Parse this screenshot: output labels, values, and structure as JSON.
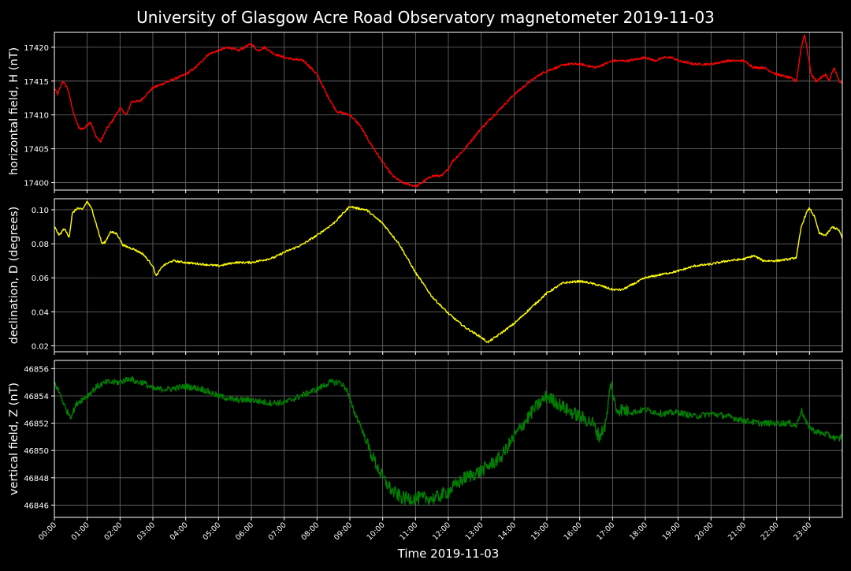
{
  "chart_data": {
    "type": "line",
    "title": "University of Glasgow Acre Road Observatory magnetometer 2019-11-03",
    "xlabel": "Time 2019-11-03",
    "x_ticks": [
      "00:00",
      "01:00",
      "02:00",
      "03:00",
      "04:00",
      "05:00",
      "06:00",
      "07:00",
      "08:00",
      "09:00",
      "10:00",
      "11:00",
      "12:00",
      "13:00",
      "14:00",
      "15:00",
      "16:00",
      "17:00",
      "18:00",
      "19:00",
      "20:00",
      "21:00",
      "22:00",
      "23:00"
    ],
    "xlim_hours": [
      0,
      24
    ],
    "grid": true,
    "background": "#000000",
    "grid_color": "#6e6e6e",
    "panels": [
      {
        "ylabel": "horizontal field, H (nT)",
        "color": "#ff0000",
        "ylim": [
          17398.9,
          17422.2
        ],
        "yticks": [
          "17400",
          "17405",
          "17410",
          "17415",
          "17420"
        ],
        "ytick_values": [
          17400,
          17405,
          17410,
          17415,
          17420
        ],
        "noise": 0.35,
        "series": {
          "name": "H",
          "x": [
            0,
            0.1,
            0.25,
            0.4,
            0.6,
            0.75,
            0.9,
            1.1,
            1.25,
            1.4,
            1.5,
            1.6,
            1.75,
            2.0,
            2.2,
            2.35,
            2.6,
            2.8,
            3.0,
            3.5,
            4.0,
            4.3,
            4.5,
            4.7,
            5.0,
            5.3,
            5.6,
            6.0,
            6.2,
            6.4,
            6.7,
            7.0,
            7.3,
            7.6,
            8.0,
            8.3,
            8.6,
            9.0,
            9.3,
            9.6,
            10.0,
            10.3,
            10.6,
            10.9,
            11.05,
            11.2,
            11.5,
            11.8,
            12.0,
            12.1,
            12.5,
            13.0,
            13.5,
            14.0,
            14.5,
            14.8,
            15.0,
            15.3,
            15.6,
            16.0,
            16.5,
            17.0,
            17.5,
            18.0,
            18.3,
            18.6,
            18.8,
            19.0,
            19.5,
            20.0,
            20.5,
            21.0,
            21.3,
            21.6,
            22.0,
            22.4,
            22.6,
            22.75,
            22.85,
            22.95,
            23.05,
            23.2,
            23.35,
            23.5,
            23.6,
            23.75,
            23.9,
            24.0
          ],
          "y": [
            17414,
            17413,
            17415,
            17414,
            17410,
            17408,
            17408,
            17409,
            17407,
            17406,
            17407,
            17408,
            17409,
            17411,
            17410,
            17412,
            17412,
            17413,
            17414,
            17415,
            17416,
            17417,
            17418,
            17419,
            17419.5,
            17420,
            17419.5,
            17420.5,
            17419.5,
            17420,
            17419,
            17418.5,
            17418.2,
            17418,
            17416,
            17413,
            17410.5,
            17410,
            17408.5,
            17406,
            17403,
            17401,
            17400,
            17399.6,
            17399.5,
            17400,
            17401,
            17401,
            17402,
            17403,
            17405,
            17408,
            17410.5,
            17413,
            17415,
            17416,
            17416.5,
            17417,
            17417.5,
            17417.5,
            17417,
            17418,
            17418,
            17418.5,
            17418,
            17418.5,
            17418.5,
            17418,
            17417.5,
            17417.5,
            17418,
            17418,
            17417,
            17417,
            17416,
            17415.5,
            17415,
            17420,
            17422,
            17419,
            17416,
            17415,
            17415.5,
            17416,
            17415,
            17417,
            17415,
            17414.5
          ]
        }
      },
      {
        "ylabel": "declination, D (degrees)",
        "color": "#ffff00",
        "ylim": [
          0.0165,
          0.1065
        ],
        "yticks": [
          "0.02",
          "0.04",
          "0.06",
          "0.08",
          "0.10"
        ],
        "ytick_values": [
          0.02,
          0.04,
          0.06,
          0.08,
          0.1
        ],
        "noise": 0.0012,
        "series": {
          "name": "D",
          "x": [
            0,
            0.15,
            0.3,
            0.45,
            0.55,
            0.7,
            0.85,
            1.0,
            1.15,
            1.3,
            1.45,
            1.55,
            1.7,
            1.9,
            2.1,
            2.4,
            2.7,
            3.0,
            3.1,
            3.3,
            3.6,
            4.0,
            4.5,
            5.0,
            5.5,
            6.0,
            6.5,
            6.7,
            7.0,
            7.5,
            8.0,
            8.5,
            8.8,
            9.0,
            9.2,
            9.5,
            10.0,
            10.5,
            11.0,
            11.5,
            12.0,
            12.5,
            13.0,
            13.2,
            13.5,
            14.0,
            14.5,
            15.0,
            15.5,
            16.0,
            16.3,
            16.7,
            17.0,
            17.3,
            17.6,
            18.0,
            18.5,
            19.0,
            19.5,
            20.0,
            20.5,
            21.0,
            21.3,
            21.6,
            22.0,
            22.4,
            22.6,
            22.75,
            22.9,
            23.0,
            23.15,
            23.3,
            23.5,
            23.7,
            23.9,
            24.0
          ],
          "y": [
            0.09,
            0.085,
            0.089,
            0.084,
            0.098,
            0.101,
            0.1,
            0.105,
            0.1,
            0.09,
            0.08,
            0.081,
            0.087,
            0.086,
            0.079,
            0.077,
            0.074,
            0.067,
            0.061,
            0.067,
            0.07,
            0.069,
            0.068,
            0.067,
            0.069,
            0.069,
            0.071,
            0.072,
            0.075,
            0.079,
            0.085,
            0.092,
            0.098,
            0.102,
            0.101,
            0.1,
            0.092,
            0.08,
            0.063,
            0.049,
            0.039,
            0.031,
            0.025,
            0.022,
            0.026,
            0.033,
            0.042,
            0.051,
            0.057,
            0.058,
            0.057,
            0.055,
            0.053,
            0.053,
            0.056,
            0.06,
            0.062,
            0.064,
            0.067,
            0.068,
            0.07,
            0.071,
            0.073,
            0.07,
            0.07,
            0.071,
            0.072,
            0.09,
            0.098,
            0.101,
            0.096,
            0.086,
            0.085,
            0.09,
            0.088,
            0.083
          ]
        }
      },
      {
        "ylabel": "vertical field, Z (nT)",
        "color": "#008000",
        "ylim": [
          46845.1,
          46856.6
        ],
        "yticks": [
          "46846",
          "46848",
          "46850",
          "46852",
          "46854",
          "46856"
        ],
        "ytick_values": [
          46846,
          46848,
          46850,
          46852,
          46854,
          46856
        ],
        "noise": 0.45,
        "series": {
          "name": "Z",
          "x": [
            0,
            0.2,
            0.35,
            0.5,
            0.7,
            1.0,
            1.3,
            1.6,
            2.0,
            2.3,
            2.5,
            2.7,
            3.0,
            3.5,
            4.0,
            4.5,
            5.0,
            5.5,
            6.0,
            6.5,
            7.0,
            7.5,
            8.0,
            8.4,
            8.7,
            8.9,
            9.1,
            9.3,
            9.6,
            10.0,
            10.3,
            10.6,
            11.0,
            11.3,
            11.6,
            12.0,
            12.5,
            13.0,
            13.3,
            13.6,
            14.0,
            14.3,
            14.6,
            15.0,
            15.3,
            15.6,
            16.0,
            16.4,
            16.6,
            16.8,
            16.95,
            17.1,
            17.3,
            17.6,
            18.0,
            18.5,
            19.0,
            19.5,
            20.0,
            20.5,
            21.0,
            21.5,
            22.0,
            22.4,
            22.6,
            22.75,
            22.9,
            23.1,
            23.3,
            23.5,
            23.7,
            23.9,
            24.0
          ],
          "y": [
            46855,
            46854,
            46853,
            46852.5,
            46853.5,
            46854,
            46854.7,
            46855,
            46855,
            46855.3,
            46855,
            46855,
            46854.5,
            46854.5,
            46854.7,
            46854.5,
            46854,
            46853.7,
            46853.7,
            46853.5,
            46853.5,
            46854,
            46854.5,
            46855,
            46855,
            46854.5,
            46853,
            46852,
            46850,
            46848,
            46847,
            46846.5,
            46846.5,
            46846.5,
            46846.5,
            46847,
            46848,
            46848.5,
            46849,
            46849.5,
            46851,
            46852,
            46853,
            46854,
            46853.5,
            46853,
            46852.5,
            46852,
            46851,
            46852,
            46855,
            46853,
            46853,
            46852.8,
            46853,
            46852.7,
            46852.8,
            46852.5,
            46852.7,
            46852.5,
            46852.2,
            46852,
            46852,
            46852,
            46851.8,
            46853,
            46852,
            46851.5,
            46851.3,
            46851.2,
            46851,
            46850.8,
            46851.2
          ]
        }
      }
    ]
  }
}
